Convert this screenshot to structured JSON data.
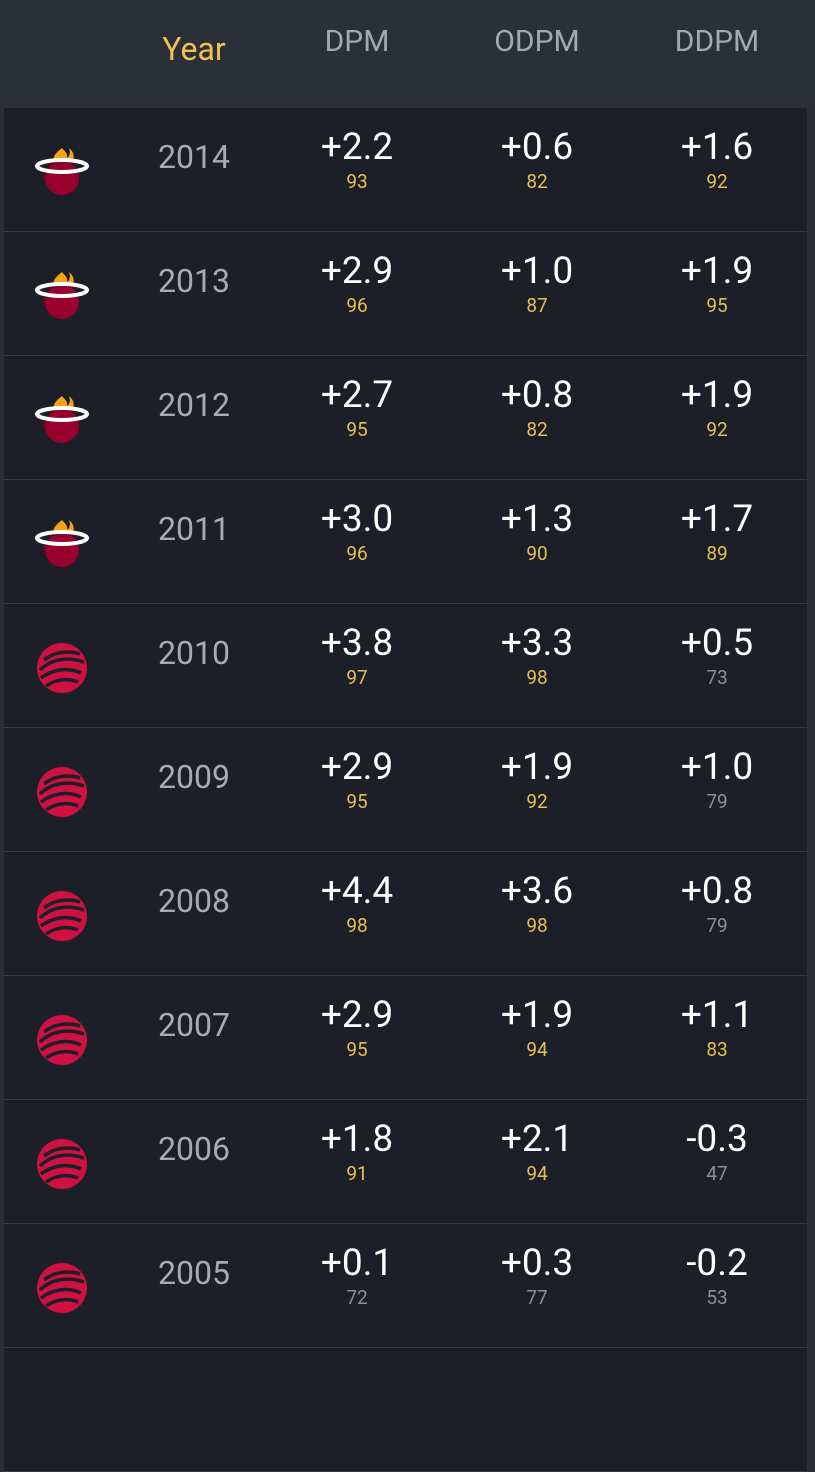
{
  "header": {
    "columns": [
      "Year",
      "DPM",
      "ODPM",
      "DDPM"
    ]
  },
  "rows": [
    [
      "2014",
      "+2.2",
      "93",
      "+0.6",
      "82",
      "+1.6",
      "92"
    ],
    [
      "2013",
      "+2.9",
      "96",
      "+1.0",
      "87",
      "+1.9",
      "95"
    ],
    [
      "2012",
      "+2.7",
      "95",
      "+0.8",
      "82",
      "+1.9",
      "92"
    ],
    [
      "2011",
      "+3.0",
      "96",
      "+1.3",
      "90",
      "+1.7",
      "89"
    ],
    [
      "2010",
      "+3.8",
      "97",
      "+3.3",
      "98",
      "+0.5",
      "73"
    ],
    [
      "2009",
      "+2.9",
      "95",
      "+1.9",
      "92",
      "+1.0",
      "79"
    ],
    [
      "2008",
      "+4.4",
      "98",
      "+3.6",
      "98",
      "+0.8",
      "79"
    ],
    [
      "2007",
      "+2.9",
      "95",
      "+1.9",
      "94",
      "+1.1",
      "83"
    ],
    [
      "2006",
      "+1.8",
      "91",
      "+2.1",
      "94",
      "-0.3",
      "47"
    ],
    [
      "2005",
      "+0.1",
      "72",
      "+0.3",
      "77",
      "-0.2",
      "53"
    ]
  ]
}
